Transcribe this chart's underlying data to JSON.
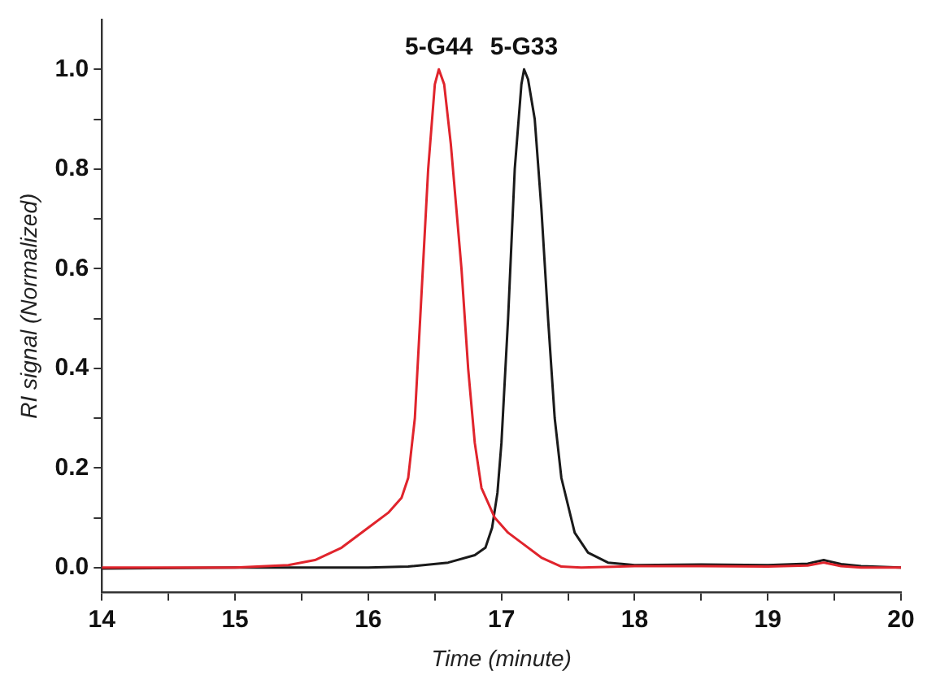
{
  "chart_data": {
    "type": "line",
    "xlabel": "Time (minute)",
    "ylabel": "RI signal (Normalized)",
    "xlim": [
      14,
      20
    ],
    "ylim": [
      -0.05,
      1.1
    ],
    "xticks": [
      14,
      {
        "value": 14.5,
        "label": null
      },
      15,
      {
        "value": 15.5,
        "label": null
      },
      16,
      {
        "value": 16.5,
        "label": null
      },
      17,
      {
        "value": 17.5,
        "label": null
      },
      18,
      {
        "value": 18.5,
        "label": null
      },
      19,
      {
        "value": 19.5,
        "label": null
      },
      20
    ],
    "yticks": [
      {
        "value": 0,
        "label": "0.0"
      },
      {
        "value": 0.1,
        "label": null
      },
      {
        "value": 0.2,
        "label": "0.2"
      },
      {
        "value": 0.3,
        "label": null
      },
      {
        "value": 0.4,
        "label": "0.4"
      },
      {
        "value": 0.5,
        "label": null
      },
      {
        "value": 0.6,
        "label": "0.6"
      },
      {
        "value": 0.7,
        "label": null
      },
      {
        "value": 0.8,
        "label": "0.8"
      },
      {
        "value": 0.9,
        "label": null
      },
      {
        "value": 1,
        "label": "1.0"
      }
    ],
    "grid": false,
    "legend": false,
    "marker": "none",
    "line_style": "solid",
    "series": [
      {
        "name": "5-G44",
        "color": "#e0242c",
        "x": [
          14,
          15,
          15.4,
          15.6,
          15.8,
          16,
          16.15,
          16.25,
          16.3,
          16.35,
          16.4,
          16.45,
          16.5,
          16.53,
          16.57,
          16.62,
          16.7,
          16.75,
          16.8,
          16.85,
          16.95,
          17.05,
          17.15,
          17.3,
          17.45,
          17.6,
          18,
          18.5,
          19,
          19.3,
          19.42,
          19.55,
          19.7,
          20
        ],
        "values": [
          0,
          0,
          0.005,
          0.015,
          0.04,
          0.08,
          0.11,
          0.14,
          0.18,
          0.3,
          0.55,
          0.8,
          0.97,
          1,
          0.97,
          0.85,
          0.6,
          0.4,
          0.25,
          0.16,
          0.1,
          0.07,
          0.05,
          0.02,
          0.002,
          0,
          0.003,
          0.003,
          0.002,
          0.004,
          0.01,
          0.003,
          0,
          0
        ]
      },
      {
        "name": "5-G33",
        "color": "#1a1a1a",
        "x": [
          14,
          15,
          16,
          16.3,
          16.6,
          16.8,
          16.88,
          16.93,
          16.97,
          17,
          17.05,
          17.1,
          17.15,
          17.17,
          17.2,
          17.25,
          17.3,
          17.35,
          17.4,
          17.45,
          17.55,
          17.65,
          17.8,
          18,
          18.5,
          19,
          19.3,
          19.42,
          19.55,
          19.7,
          20
        ],
        "values": [
          -0.002,
          0,
          0,
          0.002,
          0.01,
          0.025,
          0.04,
          0.08,
          0.15,
          0.25,
          0.5,
          0.8,
          0.97,
          1,
          0.98,
          0.9,
          0.72,
          0.5,
          0.3,
          0.18,
          0.07,
          0.03,
          0.01,
          0.005,
          0.006,
          0.005,
          0.008,
          0.015,
          0.007,
          0.003,
          0
        ]
      }
    ]
  }
}
